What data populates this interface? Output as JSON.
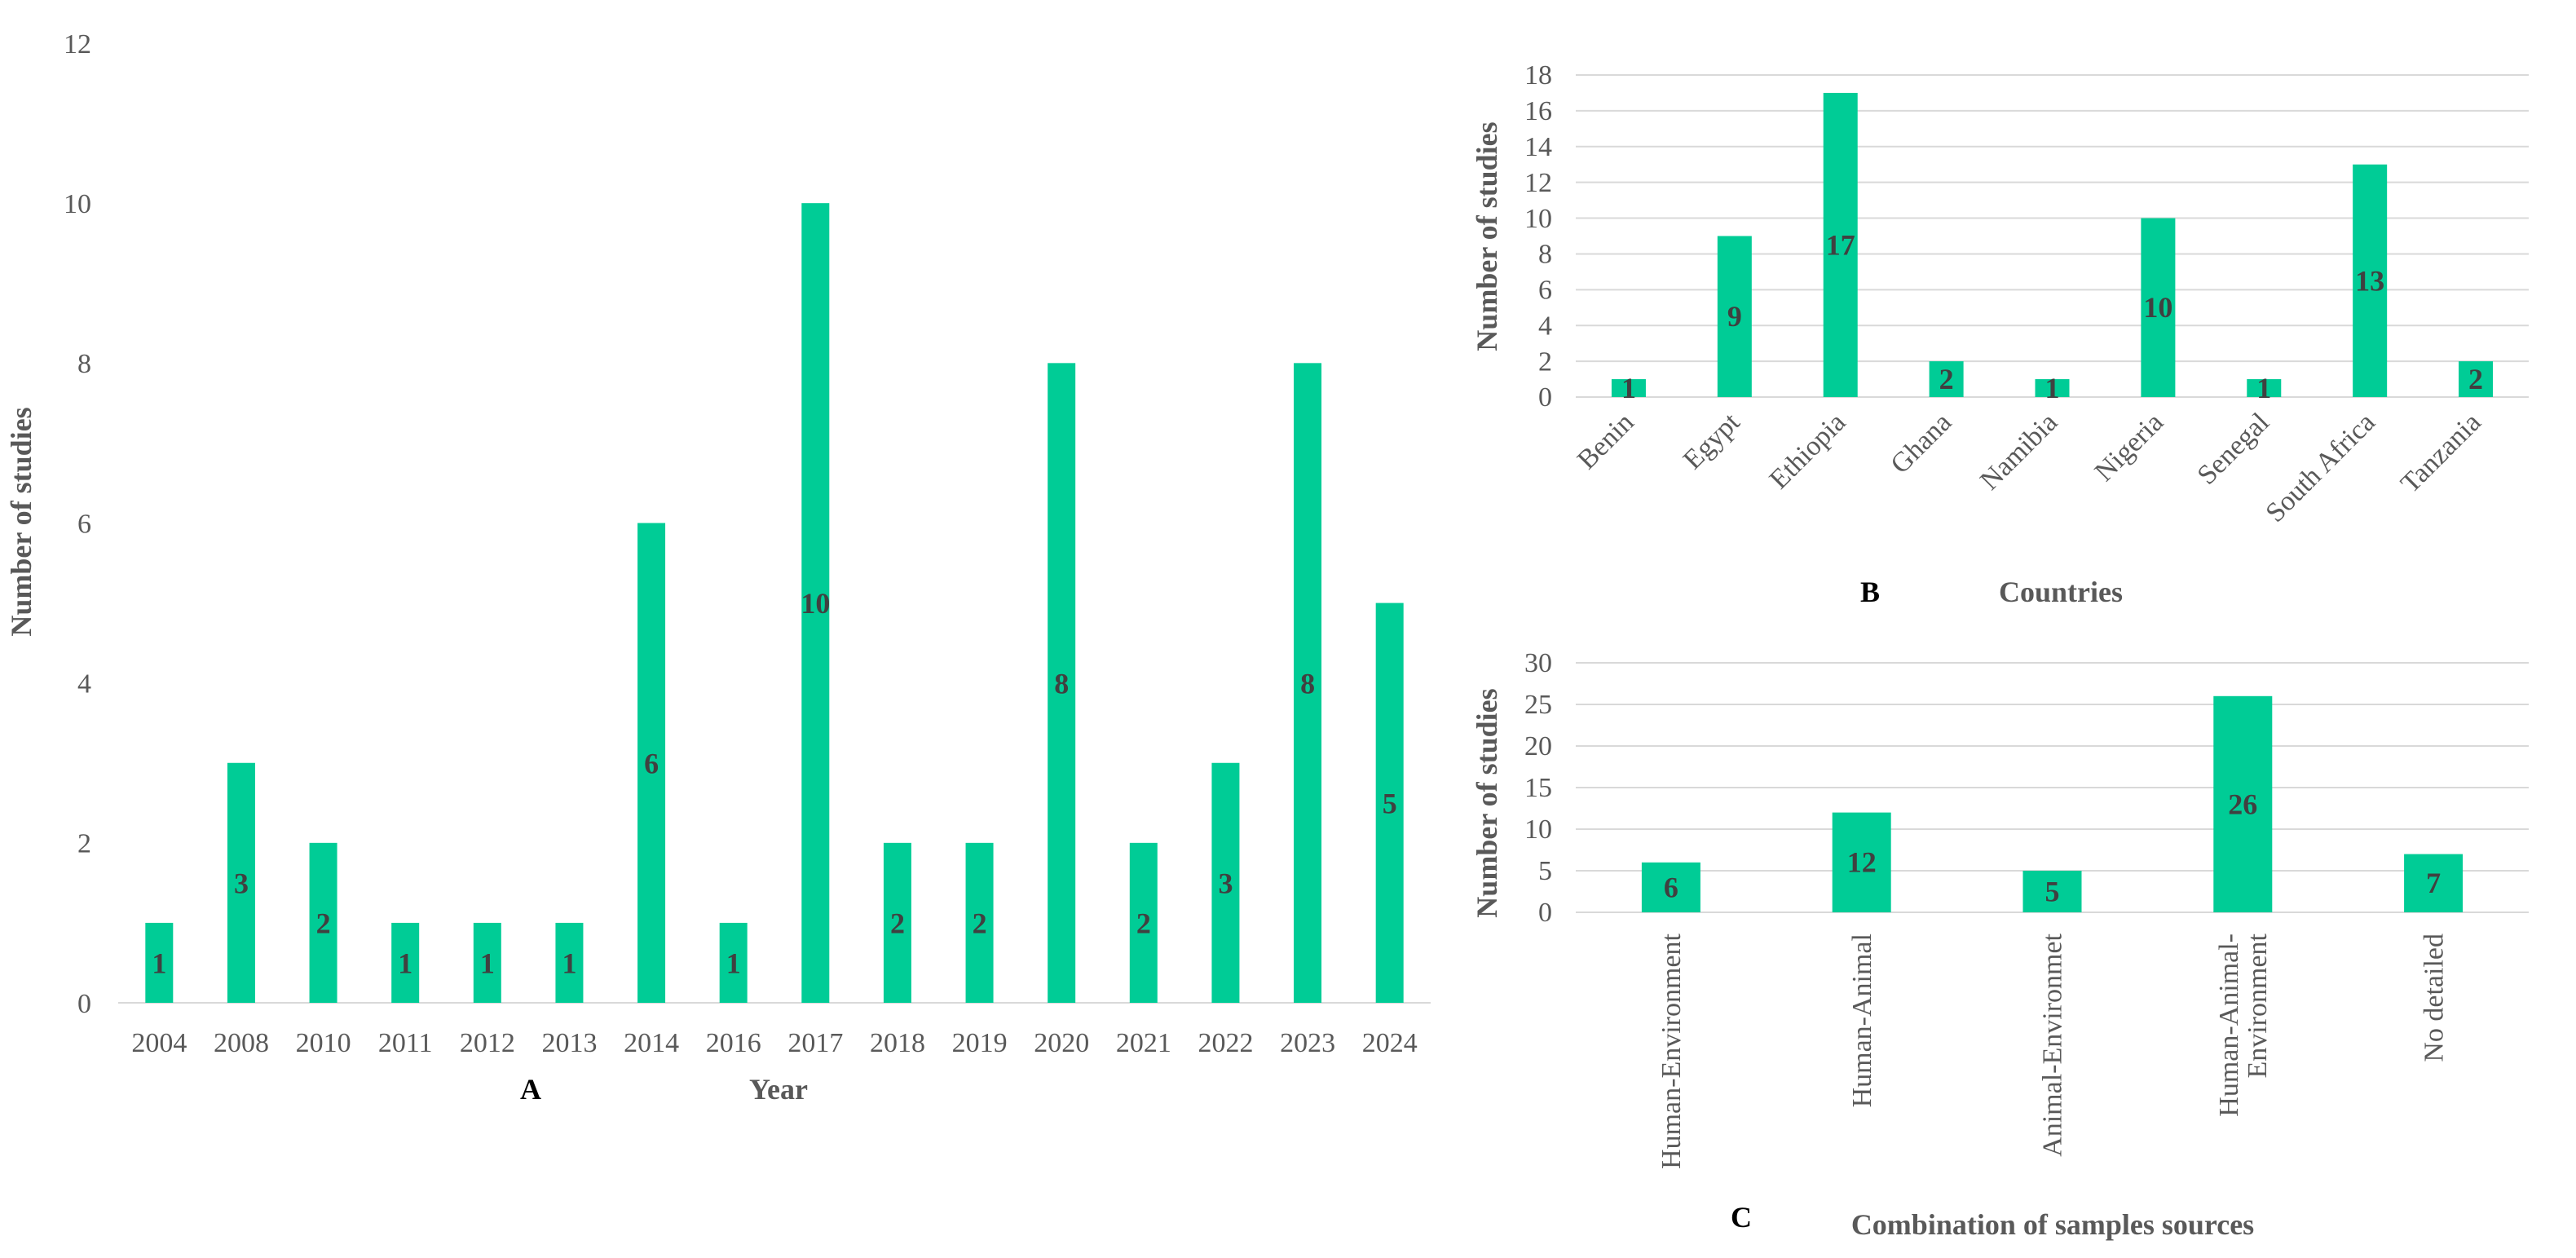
{
  "colors": {
    "bar": "#00cc96",
    "label": "#404040",
    "tick": "#595959",
    "grid": "#d9d9d9"
  },
  "chart_data": [
    {
      "panel": "A",
      "type": "bar",
      "categories": [
        "2004",
        "2008",
        "2010",
        "2011",
        "2012",
        "2013",
        "2014",
        "2016",
        "2017",
        "2018",
        "2019",
        "2020",
        "2021",
        "2022",
        "2023",
        "2024"
      ],
      "values": [
        1,
        3,
        2,
        1,
        1,
        1,
        6,
        1,
        10,
        2,
        2,
        8,
        2,
        3,
        8,
        5
      ],
      "xlabel": "Year",
      "ylabel": "Number of studies",
      "ylim": [
        0,
        12
      ],
      "yticks": [
        0,
        2,
        4,
        6,
        8,
        10,
        12
      ],
      "grid": false
    },
    {
      "panel": "B",
      "type": "bar",
      "categories": [
        "Benin",
        "Egypt",
        "Ethiopia",
        "Ghana",
        "Namibia",
        "Nigeria",
        "Senegal",
        "South Africa",
        "Tanzania"
      ],
      "values": [
        1,
        9,
        17,
        2,
        1,
        10,
        1,
        13,
        2
      ],
      "xlabel": "Countries",
      "ylabel": "Number of studies",
      "ylim": [
        0,
        18
      ],
      "yticks": [
        0,
        2,
        4,
        6,
        8,
        10,
        12,
        14,
        16,
        18
      ],
      "grid": true
    },
    {
      "panel": "C",
      "type": "bar",
      "categories": [
        "Human-Environment",
        "Human-Animal",
        "Animal-Environmet",
        "Human-Animal-Environment",
        "No detailed"
      ],
      "category_lines": [
        [
          "Human-Environment"
        ],
        [
          "Human-Animal"
        ],
        [
          "Animal-Environmet"
        ],
        [
          "Human-Animal-",
          "Environment"
        ],
        [
          "No detailed"
        ]
      ],
      "values": [
        6,
        12,
        5,
        26,
        7
      ],
      "xlabel": "Combination  of samples sources",
      "ylabel": "Number of studies",
      "ylim": [
        0,
        30
      ],
      "yticks": [
        0,
        5,
        10,
        15,
        20,
        25,
        30
      ],
      "grid": true
    }
  ]
}
